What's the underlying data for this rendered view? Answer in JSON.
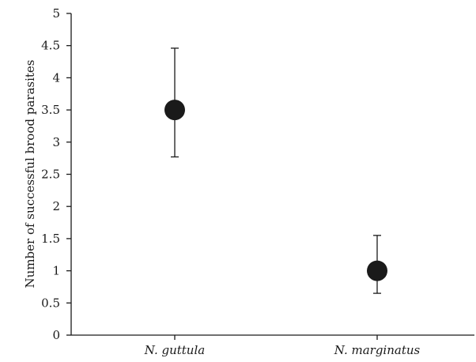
{
  "chart_data": {
    "type": "scatter",
    "title": "",
    "xlabel": "",
    "ylabel": "Number of successful brood parasites",
    "categories": [
      "N. guttula",
      "N. marginatus"
    ],
    "series": [
      {
        "values": [
          3.5,
          1.0
        ],
        "error_lower": [
          2.77,
          0.65
        ],
        "error_upper": [
          4.46,
          1.55
        ]
      }
    ],
    "ylim": [
      0,
      5
    ],
    "yticks": [
      0,
      0.5,
      1,
      1.5,
      2,
      2.5,
      3,
      3.5,
      4,
      4.5,
      5
    ],
    "ytick_labels": [
      "0",
      "0.5",
      "1",
      "1.5",
      "2",
      "2.5",
      "3",
      "3.5",
      "4",
      "4.5",
      "5"
    ],
    "grid": false,
    "legend": "none",
    "colors": {
      "marker": "#1a1a1a",
      "axis": "#1a1a1a"
    }
  }
}
